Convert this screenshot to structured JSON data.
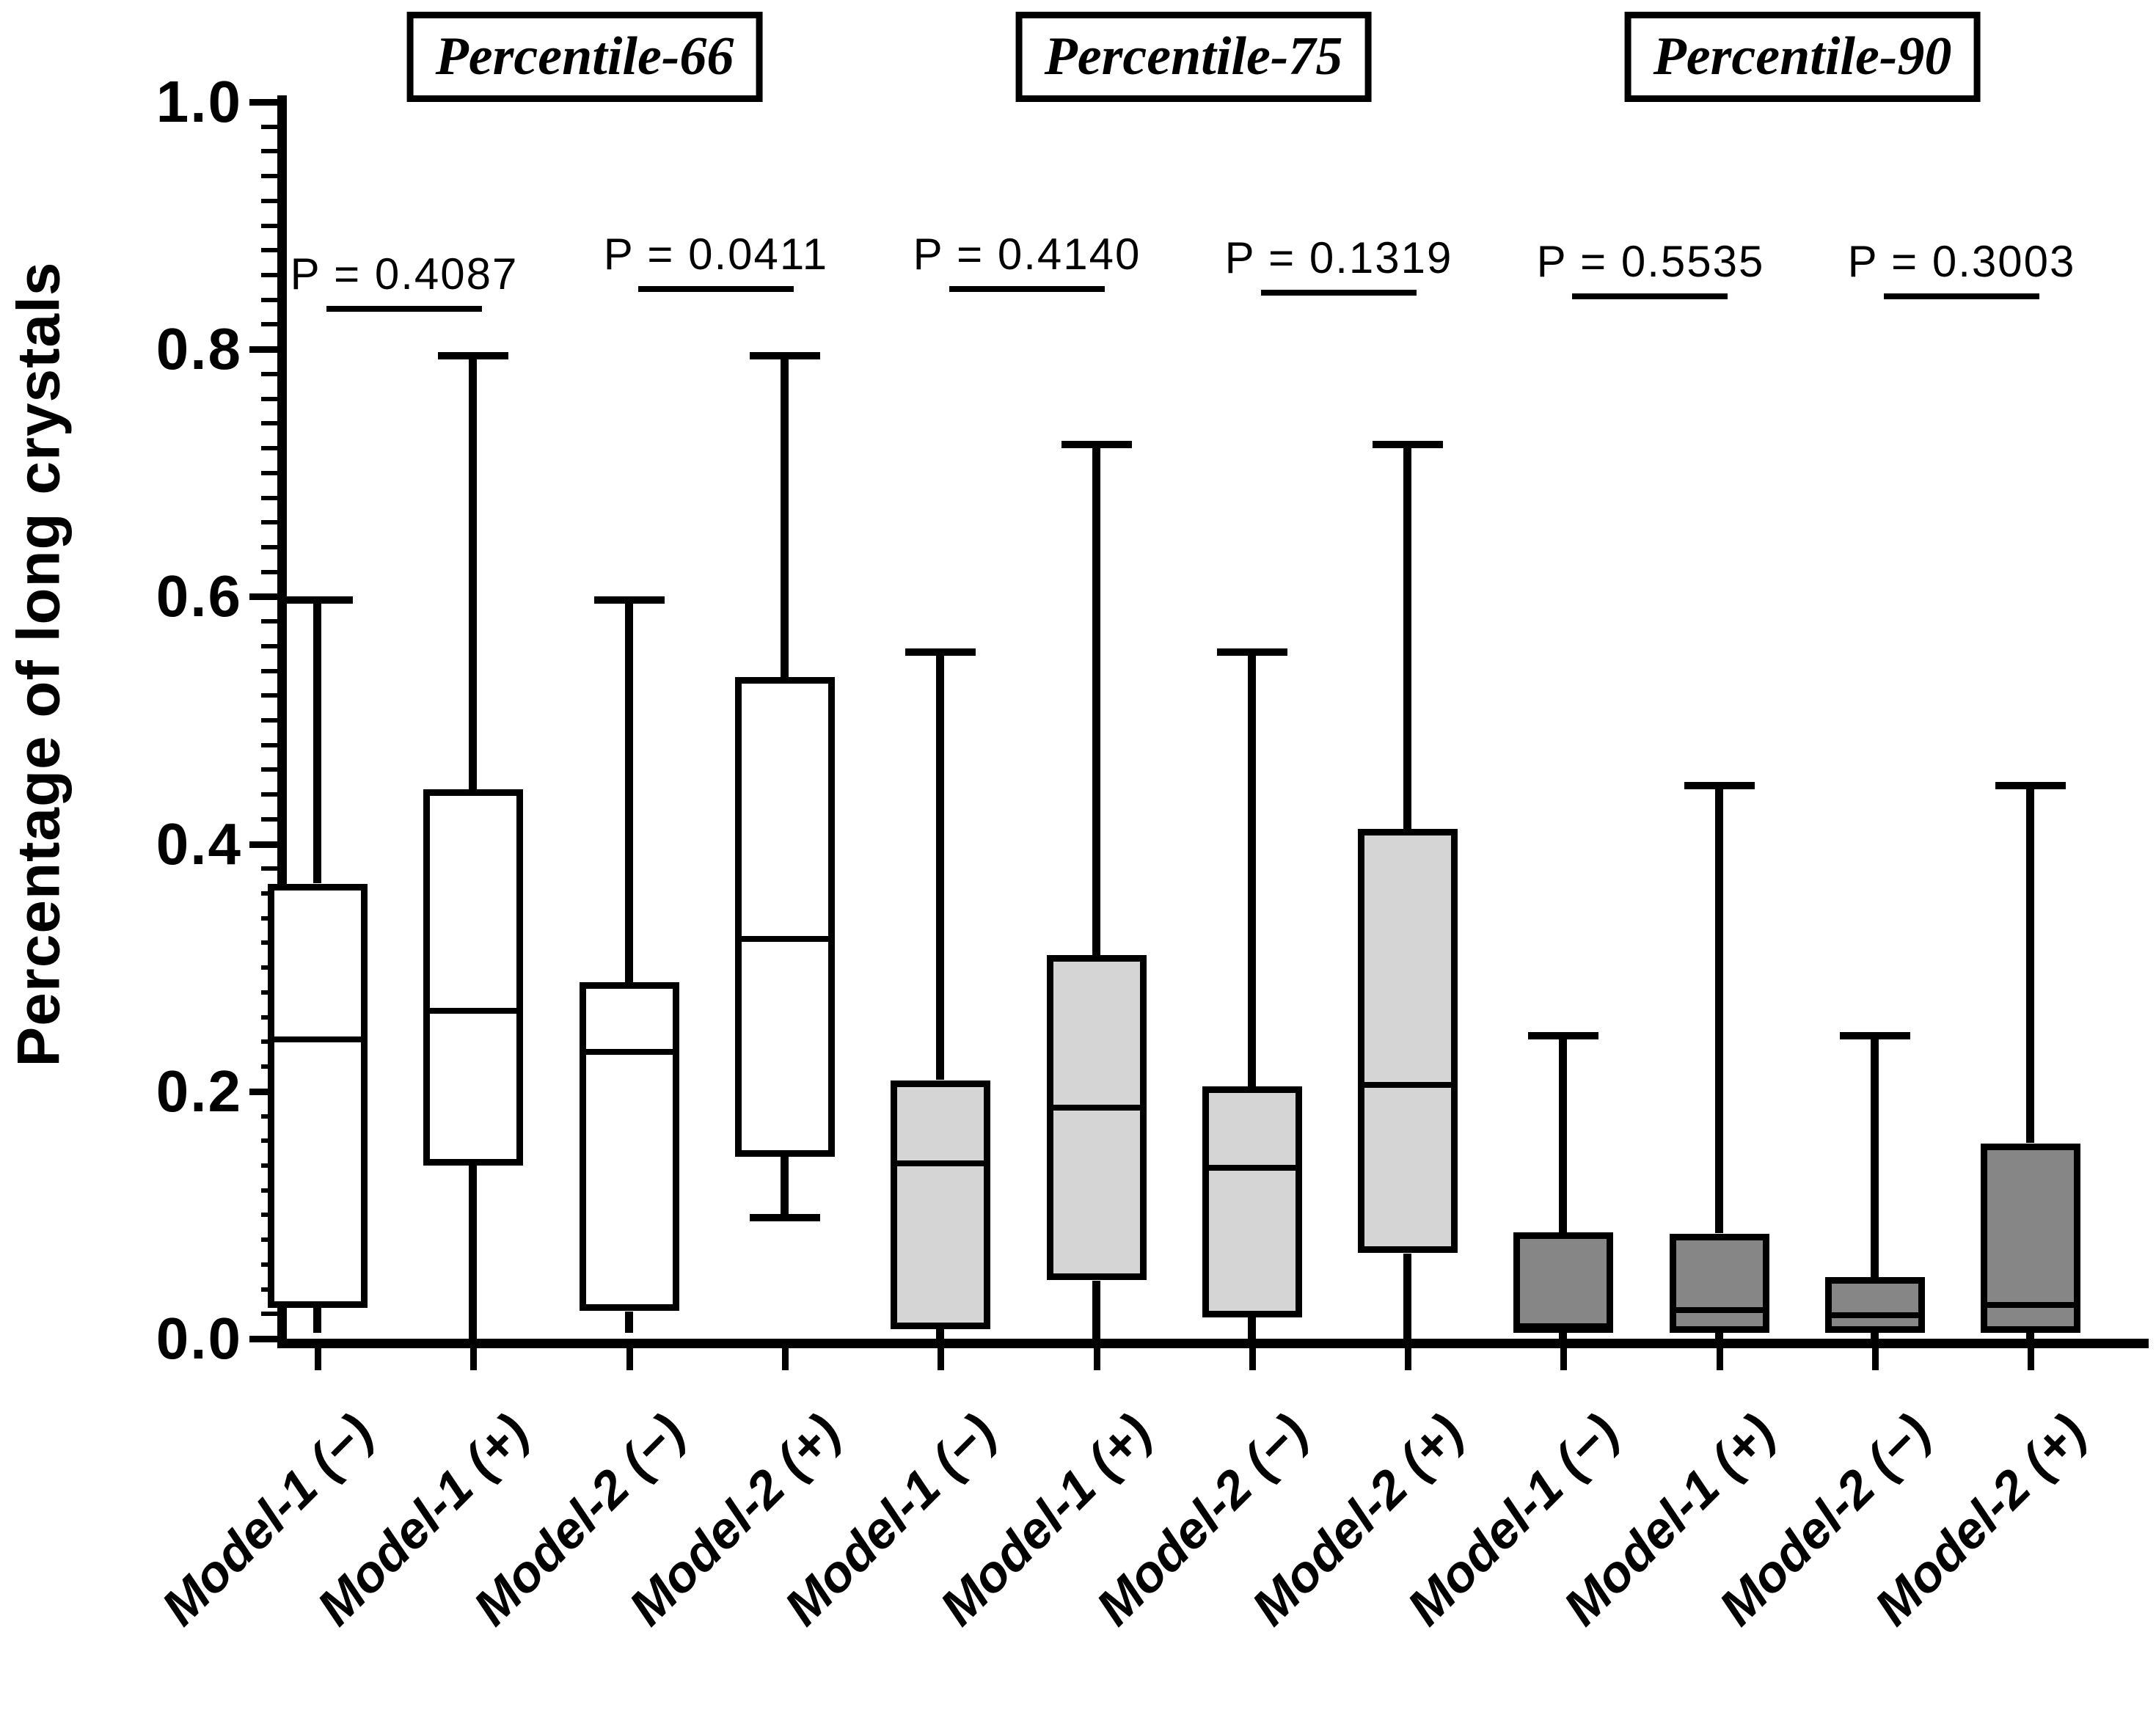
{
  "chart_data": {
    "type": "boxplot",
    "title": "",
    "ylabel": "Percentage of long crystals",
    "xlabel": "",
    "ylim": [
      0.0,
      1.0
    ],
    "ytick_labels": [
      "0.0",
      "0.2",
      "0.4",
      "0.6",
      "0.8",
      "1.0"
    ],
    "ytick_step": 0.2,
    "minor_tick_step": 0.02,
    "grid": "off",
    "legend": "none",
    "axis_color": "#000000",
    "groups": [
      {
        "label": "Percentile-66",
        "fill": "#ffffff",
        "boxes": [
          {
            "label": "Model-1 (−)",
            "min": 0.005,
            "q1": 0.025,
            "median": 0.242,
            "q3": 0.368,
            "max": 0.597,
            "lower_cap": false
          },
          {
            "label": "Model-1 (+)",
            "min": 0.0,
            "q1": 0.14,
            "median": 0.265,
            "q3": 0.444,
            "max": 0.795,
            "lower_cap": false
          },
          {
            "label": "Model-2 (−)",
            "min": 0.005,
            "q1": 0.022,
            "median": 0.232,
            "q3": 0.288,
            "max": 0.597,
            "lower_cap": false
          },
          {
            "label": "Model-2 (+)",
            "min": 0.098,
            "q1": 0.147,
            "median": 0.323,
            "q3": 0.535,
            "max": 0.795,
            "lower_cap": true
          }
        ]
      },
      {
        "label": "Percentile-75",
        "fill": "#d5d5d5",
        "boxes": [
          {
            "label": "Model-1 (−)",
            "min": 0.0,
            "q1": 0.008,
            "median": 0.142,
            "q3": 0.209,
            "max": 0.555,
            "lower_cap": false
          },
          {
            "label": "Model-1 (+)",
            "min": 0.0,
            "q1": 0.047,
            "median": 0.187,
            "q3": 0.31,
            "max": 0.723,
            "lower_cap": false
          },
          {
            "label": "Model-2 (−)",
            "min": 0.0,
            "q1": 0.017,
            "median": 0.138,
            "q3": 0.204,
            "max": 0.555,
            "lower_cap": false
          },
          {
            "label": "Model-2 (+)",
            "min": 0.0,
            "q1": 0.069,
            "median": 0.205,
            "q3": 0.412,
            "max": 0.723,
            "lower_cap": false
          }
        ]
      },
      {
        "label": "Percentile-90",
        "fill": "#868686",
        "boxes": [
          {
            "label": "Model-1 (−)",
            "min": 0.0,
            "q1": 0.005,
            "median": 0.01,
            "q3": 0.086,
            "max": 0.245,
            "lower_cap": false
          },
          {
            "label": "Model-1 (+)",
            "min": 0.0,
            "q1": 0.005,
            "median": 0.023,
            "q3": 0.085,
            "max": 0.447,
            "lower_cap": false
          },
          {
            "label": "Model-2 (−)",
            "min": 0.0,
            "q1": 0.005,
            "median": 0.019,
            "q3": 0.05,
            "max": 0.245,
            "lower_cap": false
          },
          {
            "label": "Model-2 (+)",
            "min": 0.0,
            "q1": 0.005,
            "median": 0.027,
            "q3": 0.158,
            "max": 0.447,
            "lower_cap": false
          }
        ]
      }
    ],
    "comparisons": [
      {
        "boxes": [
          0,
          1
        ],
        "label": "P = 0.4087",
        "line_y": 0.833
      },
      {
        "boxes": [
          2,
          3
        ],
        "label": "P = 0.0411",
        "line_y": 0.849
      },
      {
        "boxes": [
          4,
          5
        ],
        "label": "P = 0.4140",
        "line_y": 0.849
      },
      {
        "boxes": [
          6,
          7
        ],
        "label": "P = 0.1319",
        "line_y": 0.846
      },
      {
        "boxes": [
          8,
          9
        ],
        "label": "P = 0.5535",
        "line_y": 0.843
      },
      {
        "boxes": [
          10,
          11
        ],
        "label": "P = 0.3003",
        "line_y": 0.843
      }
    ]
  }
}
